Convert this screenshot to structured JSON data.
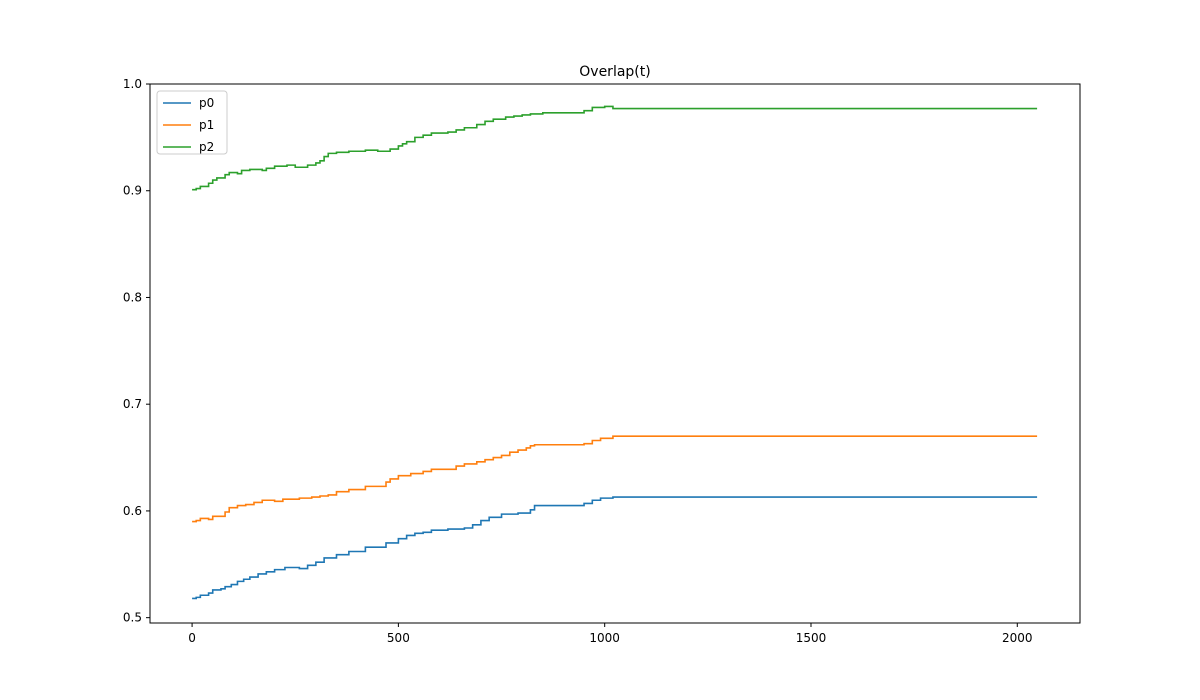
{
  "chart_data": {
    "type": "line",
    "title": "Overlap(t)",
    "xlabel": "",
    "ylabel": "",
    "xlim": [
      -102,
      2152
    ],
    "ylim": [
      0.495,
      1.0
    ],
    "xticks": [
      0,
      500,
      1000,
      1500,
      2000
    ],
    "yticks": [
      0.5,
      0.6,
      0.7,
      0.8,
      0.9,
      1.0
    ],
    "xtick_labels": [
      "0",
      "500",
      "1000",
      "1500",
      "2000"
    ],
    "ytick_labels": [
      "0.5",
      "0.6",
      "0.7",
      "0.8",
      "0.9",
      "1.0"
    ],
    "grid": false,
    "legend": "top-left",
    "step": true,
    "series": [
      {
        "name": "p0",
        "color": "#1f77b4",
        "points": [
          [
            0,
            0.518
          ],
          [
            10,
            0.519
          ],
          [
            20,
            0.521
          ],
          [
            40,
            0.523
          ],
          [
            50,
            0.526
          ],
          [
            70,
            0.527
          ],
          [
            80,
            0.529
          ],
          [
            95,
            0.531
          ],
          [
            110,
            0.534
          ],
          [
            125,
            0.536
          ],
          [
            140,
            0.538
          ],
          [
            160,
            0.541
          ],
          [
            180,
            0.543
          ],
          [
            200,
            0.545
          ],
          [
            225,
            0.547
          ],
          [
            260,
            0.546
          ],
          [
            280,
            0.549
          ],
          [
            300,
            0.552
          ],
          [
            320,
            0.556
          ],
          [
            350,
            0.559
          ],
          [
            380,
            0.562
          ],
          [
            420,
            0.566
          ],
          [
            470,
            0.57
          ],
          [
            500,
            0.574
          ],
          [
            520,
            0.577
          ],
          [
            540,
            0.579
          ],
          [
            560,
            0.58
          ],
          [
            580,
            0.582
          ],
          [
            620,
            0.583
          ],
          [
            660,
            0.584
          ],
          [
            680,
            0.587
          ],
          [
            700,
            0.591
          ],
          [
            720,
            0.594
          ],
          [
            750,
            0.597
          ],
          [
            790,
            0.598
          ],
          [
            820,
            0.601
          ],
          [
            830,
            0.605
          ],
          [
            950,
            0.607
          ],
          [
            970,
            0.61
          ],
          [
            990,
            0.612
          ],
          [
            1020,
            0.613
          ],
          [
            2048,
            0.613
          ]
        ]
      },
      {
        "name": "p1",
        "color": "#ff7f0e",
        "points": [
          [
            0,
            0.59
          ],
          [
            10,
            0.591
          ],
          [
            20,
            0.593
          ],
          [
            40,
            0.592
          ],
          [
            50,
            0.595
          ],
          [
            80,
            0.599
          ],
          [
            90,
            0.603
          ],
          [
            110,
            0.605
          ],
          [
            130,
            0.606
          ],
          [
            150,
            0.608
          ],
          [
            170,
            0.61
          ],
          [
            200,
            0.609
          ],
          [
            220,
            0.611
          ],
          [
            260,
            0.612
          ],
          [
            290,
            0.613
          ],
          [
            310,
            0.614
          ],
          [
            330,
            0.615
          ],
          [
            350,
            0.618
          ],
          [
            380,
            0.62
          ],
          [
            420,
            0.623
          ],
          [
            470,
            0.627
          ],
          [
            480,
            0.63
          ],
          [
            500,
            0.633
          ],
          [
            530,
            0.635
          ],
          [
            560,
            0.637
          ],
          [
            580,
            0.639
          ],
          [
            640,
            0.642
          ],
          [
            660,
            0.644
          ],
          [
            690,
            0.646
          ],
          [
            710,
            0.648
          ],
          [
            730,
            0.65
          ],
          [
            750,
            0.652
          ],
          [
            770,
            0.655
          ],
          [
            790,
            0.657
          ],
          [
            810,
            0.659
          ],
          [
            820,
            0.661
          ],
          [
            830,
            0.662
          ],
          [
            950,
            0.663
          ],
          [
            970,
            0.666
          ],
          [
            990,
            0.668
          ],
          [
            1020,
            0.67
          ],
          [
            2048,
            0.67
          ]
        ]
      },
      {
        "name": "p2",
        "color": "#2ca02c",
        "points": [
          [
            0,
            0.901
          ],
          [
            10,
            0.902
          ],
          [
            20,
            0.904
          ],
          [
            40,
            0.907
          ],
          [
            50,
            0.91
          ],
          [
            60,
            0.912
          ],
          [
            80,
            0.915
          ],
          [
            90,
            0.917
          ],
          [
            110,
            0.916
          ],
          [
            120,
            0.919
          ],
          [
            140,
            0.92
          ],
          [
            170,
            0.919
          ],
          [
            180,
            0.921
          ],
          [
            200,
            0.923
          ],
          [
            230,
            0.924
          ],
          [
            250,
            0.922
          ],
          [
            280,
            0.924
          ],
          [
            300,
            0.926
          ],
          [
            310,
            0.928
          ],
          [
            320,
            0.932
          ],
          [
            330,
            0.935
          ],
          [
            350,
            0.936
          ],
          [
            380,
            0.937
          ],
          [
            420,
            0.938
          ],
          [
            450,
            0.937
          ],
          [
            480,
            0.939
          ],
          [
            500,
            0.942
          ],
          [
            510,
            0.944
          ],
          [
            520,
            0.946
          ],
          [
            540,
            0.95
          ],
          [
            560,
            0.952
          ],
          [
            580,
            0.954
          ],
          [
            620,
            0.955
          ],
          [
            640,
            0.957
          ],
          [
            660,
            0.959
          ],
          [
            690,
            0.962
          ],
          [
            710,
            0.965
          ],
          [
            730,
            0.967
          ],
          [
            760,
            0.969
          ],
          [
            780,
            0.97
          ],
          [
            800,
            0.971
          ],
          [
            820,
            0.972
          ],
          [
            850,
            0.973
          ],
          [
            950,
            0.975
          ],
          [
            970,
            0.978
          ],
          [
            1000,
            0.979
          ],
          [
            1020,
            0.977
          ],
          [
            2048,
            0.977
          ]
        ]
      }
    ]
  }
}
